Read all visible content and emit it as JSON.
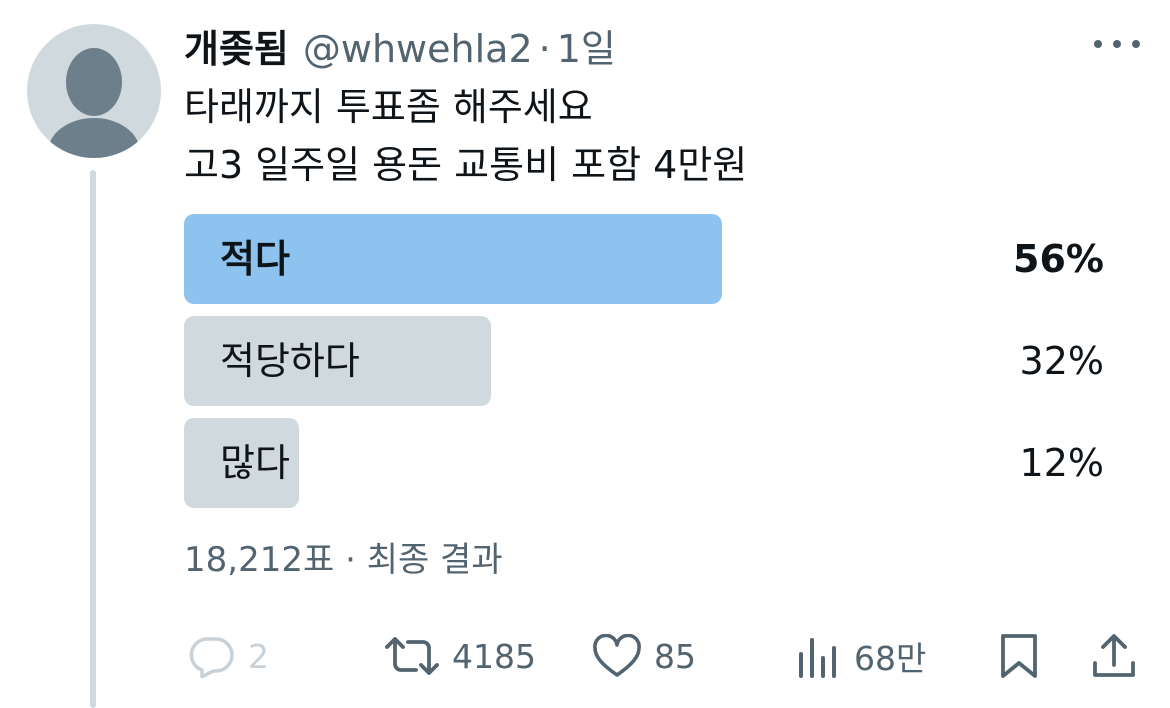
{
  "tweet": {
    "author_name": "개좆됨",
    "handle": "@whwehla2",
    "separator": "·",
    "time": "1일",
    "text_line1": "타래까지 투표좀 해주세요",
    "text_line2": "고3 일주일 용돈 교통비 포함 4만원"
  },
  "poll": {
    "options": [
      {
        "label": "적다",
        "percent": "56%",
        "value": 0.56,
        "winner": true
      },
      {
        "label": "적당하다",
        "percent": "32%",
        "value": 0.32,
        "winner": false
      },
      {
        "label": "많다",
        "percent": "12%",
        "value": 0.12,
        "winner": false
      }
    ],
    "votes": "18,212표",
    "separator": "·",
    "status": "최종 결과"
  },
  "actions": {
    "replies": "2",
    "retweets": "4185",
    "likes": "85",
    "views": "68만"
  },
  "icons": {
    "reply": "speech-bubble-icon",
    "retweet": "retweet-icon",
    "like": "heart-icon",
    "views": "bar-chart-icon",
    "bookmark": "bookmark-icon",
    "share": "share-icon",
    "more": "more-horizontal-icon"
  },
  "colors": {
    "winner_bar": "#8ec3f0",
    "bar": "#cfd9de",
    "muted_text": "#536471"
  }
}
